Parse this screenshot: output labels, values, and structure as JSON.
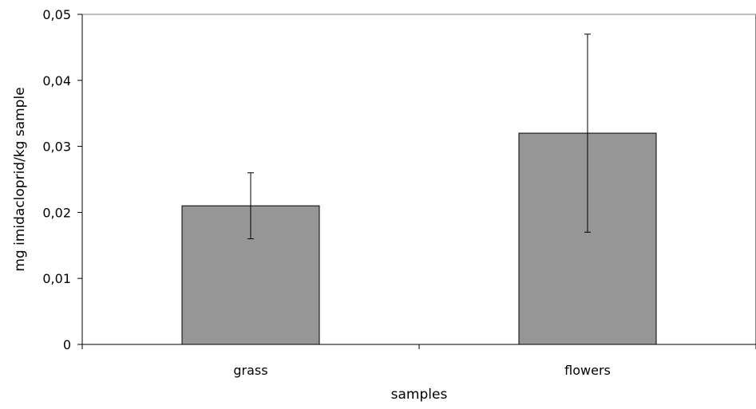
{
  "chart_data": {
    "type": "bar",
    "title": "",
    "xlabel": "samples",
    "ylabel": "mg imidacloprid/kg sample",
    "categories": [
      "grass",
      "flowers"
    ],
    "series": [
      {
        "values": [
          0.021,
          0.032
        ],
        "error_low": [
          0.016,
          0.017
        ],
        "error_high": [
          0.026,
          0.047
        ],
        "color": "#969696"
      }
    ],
    "ylim": [
      0,
      0.05
    ],
    "yticks": [
      0,
      0.01,
      0.02,
      0.03,
      0.04,
      0.05
    ],
    "ytick_labels": [
      "0",
      "0,01",
      "0,02",
      "0,03",
      "0,04",
      "0,05"
    ],
    "grid": false,
    "legend": "none",
    "colors": {
      "bar": "#969696",
      "bar_stroke": "#000000",
      "axis": "#000000",
      "plot_border": "#808080"
    }
  }
}
